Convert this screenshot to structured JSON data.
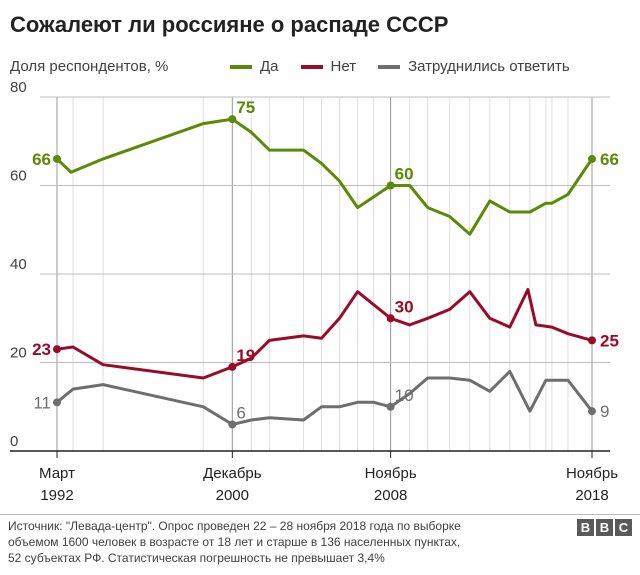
{
  "header": {
    "title": "Сожалеют ли россияне о распаде СССР",
    "y_axis_label": "Доля респондентов, %"
  },
  "colors": {
    "yes": "#5a8a06",
    "no": "#990b26",
    "undecided": "#6e6e6e",
    "grid": "#bdbdbd",
    "axis": "#222222"
  },
  "chart_data": {
    "type": "line",
    "title": "Сожалеют ли россияне о распаде СССР",
    "ylabel": "Доля респондентов, %",
    "xlabel": "",
    "ylim": [
      0,
      80
    ],
    "xlim": [
      1992.2,
      2018.9
    ],
    "yticks": [
      0,
      20,
      40,
      60,
      80
    ],
    "grid": true,
    "legend_position": "top",
    "x_ticks": [
      {
        "x": 1992.2,
        "month": "Март",
        "year": "1992"
      },
      {
        "x": 2000.95,
        "month": "Декабрь",
        "year": "2000"
      },
      {
        "x": 2008.85,
        "month": "Ноябрь",
        "year": "2008"
      },
      {
        "x": 2018.9,
        "month": "Ноябрь",
        "year": "2018"
      }
    ],
    "survey_dates": [
      1992.2,
      1993.0,
      1994.5,
      1999.5,
      2000.95,
      2001.9,
      2002.8,
      2004.5,
      2005.4,
      2006.3,
      2007.2,
      2008.0,
      2008.85,
      2009.8,
      2010.7,
      2011.8,
      2012.8,
      2013.8,
      2014.8,
      2015.8,
      2016.6,
      2016.9,
      2017.7,
      2018.9
    ],
    "series": [
      {
        "key": "yes",
        "name": "Да",
        "x": [
          1992.2,
          1992.9,
          1994.5,
          1999.5,
          2000.95,
          2001.9,
          2002.8,
          2004.5,
          2005.4,
          2006.3,
          2007.2,
          2008.85,
          2009.8,
          2010.7,
          2011.8,
          2012.8,
          2013.8,
          2014.8,
          2015.8,
          2016.6,
          2016.9,
          2017.7,
          2018.9
        ],
        "values": [
          66,
          63,
          66,
          74,
          75,
          72,
          68,
          68,
          65,
          61,
          55,
          60,
          60,
          55,
          53,
          49,
          56.5,
          54,
          54,
          56,
          56,
          58,
          66
        ]
      },
      {
        "key": "no",
        "name": "Нет",
        "x": [
          1992.2,
          1993.0,
          1994.5,
          1999.5,
          2000.95,
          2001.9,
          2002.8,
          2004.5,
          2005.4,
          2006.3,
          2007.2,
          2008.85,
          2009.8,
          2010.7,
          2011.8,
          2012.8,
          2013.8,
          2014.8,
          2015.7,
          2016.1,
          2016.9,
          2017.7,
          2018.9
        ],
        "values": [
          23,
          23.5,
          19.5,
          16.5,
          19,
          21,
          25,
          26,
          25.5,
          30,
          36,
          30,
          28.5,
          30,
          32,
          36,
          30,
          28,
          36.5,
          28.5,
          28,
          26.5,
          25
        ]
      },
      {
        "key": "undecided",
        "name": "Затруднились ответить",
        "x": [
          1992.2,
          1993.0,
          1994.5,
          1999.5,
          2000.95,
          2001.9,
          2002.8,
          2004.5,
          2005.4,
          2006.3,
          2007.2,
          2008.0,
          2008.85,
          2009.8,
          2010.7,
          2011.8,
          2012.8,
          2013.8,
          2014.8,
          2015.8,
          2016.6,
          2016.9,
          2017.7,
          2018.9
        ],
        "values": [
          11,
          14,
          15,
          10,
          6,
          7,
          7.5,
          7,
          10,
          10,
          11,
          11,
          10,
          13,
          16.5,
          16.5,
          16,
          13.5,
          18,
          9,
          16,
          16,
          16,
          9
        ]
      }
    ],
    "annotations": [
      {
        "series": "yes",
        "x": 1992.2,
        "value": 66,
        "label": "66"
      },
      {
        "series": "yes",
        "x": 2000.95,
        "value": 75,
        "label": "75"
      },
      {
        "series": "yes",
        "x": 2008.85,
        "value": 60,
        "label": "60"
      },
      {
        "series": "yes",
        "x": 2018.9,
        "value": 66,
        "label": "66"
      },
      {
        "series": "no",
        "x": 1992.2,
        "value": 23,
        "label": "23"
      },
      {
        "series": "no",
        "x": 2000.95,
        "value": 19,
        "label": "19"
      },
      {
        "series": "no",
        "x": 2008.85,
        "value": 30,
        "label": "30"
      },
      {
        "series": "no",
        "x": 2018.9,
        "value": 25,
        "label": "25"
      },
      {
        "series": "undecided",
        "x": 1992.2,
        "value": 11,
        "label": "11"
      },
      {
        "series": "undecided",
        "x": 2000.95,
        "value": 6,
        "label": "6"
      },
      {
        "series": "undecided",
        "x": 2008.85,
        "value": 10,
        "label": "10"
      },
      {
        "series": "undecided",
        "x": 2018.9,
        "value": 9,
        "label": "9"
      }
    ]
  },
  "source": {
    "line1": "Источник: \"Левада-центр\". Опрос проведен 22 – 28 ноября 2018 года по выборке",
    "line2": "объемом 1600 человек в возрасте от 18 лет и старше в 136 населенных пунктах,",
    "line3": "52 субъектах РФ. Статистическая погрешность не превышает 3,4%"
  },
  "logo": {
    "letters": [
      "B",
      "B",
      "C"
    ]
  }
}
